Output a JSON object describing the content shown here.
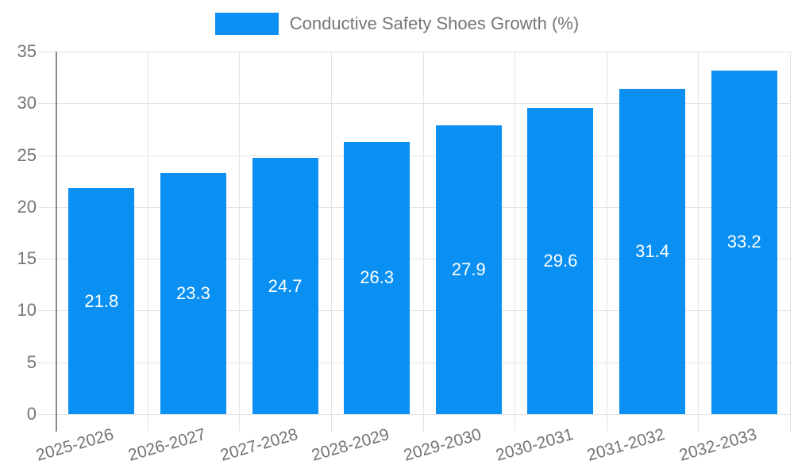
{
  "legend": {
    "label": "Conductive Safety Shoes Growth (%)"
  },
  "chart_data": {
    "type": "bar",
    "title": "Conductive Safety Shoes Growth (%)",
    "series_name": "Conductive Safety Shoes Growth (%)",
    "categories": [
      "2025-2026",
      "2026-2027",
      "2027-2028",
      "2028-2029",
      "2029-2030",
      "2030-2031",
      "2031-2032",
      "2032-2033"
    ],
    "values": [
      21.8,
      23.3,
      24.7,
      26.3,
      27.9,
      29.6,
      31.4,
      33.2
    ],
    "value_labels": [
      "21.8",
      "23.3",
      "24.7",
      "26.3",
      "27.9",
      "29.6",
      "31.4",
      "33.2"
    ],
    "xlabel": "",
    "ylabel": "",
    "ylim": [
      0,
      35
    ],
    "yticks": [
      0,
      5,
      10,
      15,
      20,
      25,
      30,
      35
    ],
    "grid": true,
    "legend_position": "top",
    "bar_color": "#0a90f2",
    "value_label_color": "#ffffff",
    "axis_text_color": "#757575",
    "grid_color": "#e3e3e3",
    "axis_line_color": "#8c8c8c",
    "background_color": "#ffffff"
  }
}
